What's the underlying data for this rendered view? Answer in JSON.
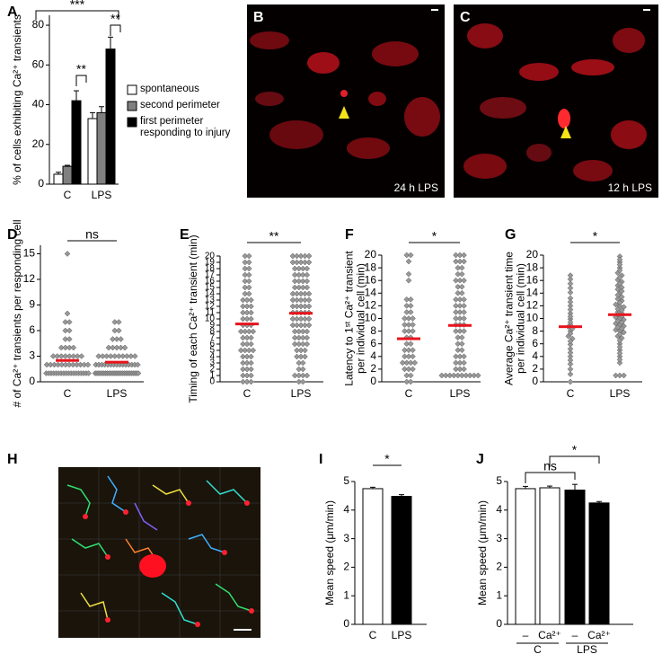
{
  "chart_data": [
    {
      "panel": "A",
      "type": "bar",
      "categories": [
        "C",
        "LPS"
      ],
      "series": [
        {
          "name": "spontaneous",
          "color": "#ffffff",
          "values": [
            5,
            33
          ],
          "errors": [
            1,
            3
          ]
        },
        {
          "name": "second perimeter",
          "color": "#808080",
          "values": [
            9,
            36
          ],
          "errors": [
            0.5,
            3
          ]
        },
        {
          "name": "first perimeter responding to injury",
          "color": "#000000",
          "values": [
            42,
            68
          ],
          "errors": [
            5,
            6
          ]
        }
      ],
      "ylabel": [
        "% of cells exhibiting Ca²⁺ transients"
      ],
      "ylim": [
        0,
        85
      ],
      "yticks": [
        0,
        20,
        40,
        60,
        80
      ],
      "annotations": [
        "**",
        "***",
        "**"
      ]
    },
    {
      "panel": "D",
      "type": "strip",
      "ylabel": [
        "# of Ca²⁺ transients  per  responding cell"
      ],
      "ylim": [
        0,
        16
      ],
      "yticks": [
        0,
        3,
        6,
        9,
        12,
        15
      ],
      "mean_color": "#e8141c",
      "annotations": [
        "ns"
      ],
      "groups": [
        {
          "label": "C",
          "mean": 2.5,
          "values": [
            15,
            8,
            7,
            7,
            6,
            6,
            5,
            5,
            4,
            4,
            4,
            4,
            3,
            3,
            3,
            3,
            3,
            3,
            3,
            3,
            2,
            2,
            2,
            2,
            2,
            2,
            2,
            2,
            2,
            2,
            2,
            2,
            1,
            1,
            1,
            1,
            1,
            1,
            1,
            1,
            1,
            1,
            1,
            1,
            1,
            1,
            1,
            1,
            1,
            1
          ]
        },
        {
          "label": "LPS",
          "mean": 2.3,
          "values": [
            7,
            7,
            6,
            6,
            5,
            5,
            5,
            4,
            4,
            4,
            4,
            4,
            3,
            3,
            3,
            3,
            3,
            3,
            3,
            3,
            3,
            3,
            2,
            2,
            2,
            2,
            2,
            2,
            2,
            2,
            2,
            2,
            2,
            2,
            2,
            2,
            2,
            1,
            1,
            1,
            1,
            1,
            1,
            1,
            1,
            1,
            1,
            1,
            1,
            1,
            1,
            1,
            1,
            1,
            1,
            1,
            1,
            1,
            1,
            1,
            1,
            1,
            1
          ]
        }
      ]
    },
    {
      "panel": "E",
      "type": "strip",
      "ylabel": [
        "Timing of each Ca²⁺ transient (min)"
      ],
      "ylim": [
        0,
        20
      ],
      "yticks": [
        0,
        1,
        2,
        3,
        4,
        5,
        6,
        7,
        8,
        9,
        10,
        11,
        12,
        13,
        14,
        15,
        16,
        17,
        18,
        19,
        20
      ],
      "mean_color": "#e8141c",
      "annotations": [
        "**"
      ],
      "groups": [
        {
          "label": "C",
          "mean": 9.2,
          "values": [
            20,
            20,
            19,
            19,
            18,
            18,
            17,
            17,
            16,
            16,
            15,
            15,
            14,
            14,
            13,
            13,
            13,
            12,
            12,
            12,
            11,
            11,
            11,
            10,
            10,
            10,
            9,
            9,
            9,
            8,
            8,
            8,
            8,
            7,
            7,
            7,
            6,
            6,
            6,
            5,
            5,
            5,
            5,
            4,
            4,
            4,
            3,
            3,
            3,
            2,
            2,
            2,
            1,
            1,
            1,
            0,
            0,
            0
          ]
        },
        {
          "label": "LPS",
          "mean": 10.9,
          "values": [
            20,
            20,
            20,
            20,
            20,
            19,
            19,
            19,
            19,
            19,
            18,
            18,
            18,
            18,
            17,
            17,
            17,
            17,
            16,
            16,
            16,
            16,
            15,
            15,
            15,
            15,
            14,
            14,
            14,
            14,
            14,
            13,
            13,
            13,
            13,
            13,
            12,
            12,
            12,
            12,
            12,
            11,
            11,
            11,
            11,
            11,
            10,
            10,
            10,
            10,
            10,
            9,
            9,
            9,
            9,
            9,
            8,
            8,
            8,
            8,
            7,
            7,
            7,
            7,
            6,
            6,
            6,
            6,
            5,
            5,
            5,
            4,
            4,
            4,
            3,
            3,
            2,
            2,
            1,
            1,
            1,
            1,
            0,
            0
          ]
        }
      ]
    },
    {
      "panel": "F",
      "type": "strip",
      "ylabel": [
        "Latency to 1ˢᵗ Ca²⁺ transient",
        "per individual cell (min)"
      ],
      "ylim": [
        0,
        20
      ],
      "yticks": [
        0,
        2,
        4,
        6,
        8,
        10,
        12,
        14,
        16,
        18,
        20
      ],
      "mean_color": "#e8141c",
      "annotations": [
        "*"
      ],
      "groups": [
        {
          "label": "C",
          "mean": 6.8,
          "values": [
            20,
            20,
            19,
            17,
            16,
            13,
            13,
            12,
            12,
            11,
            11,
            10,
            10,
            10,
            9,
            9,
            9,
            8,
            8,
            8,
            7,
            7,
            6,
            6,
            5,
            5,
            5,
            4,
            4,
            4,
            3,
            3,
            3,
            3,
            2,
            2,
            2,
            1,
            1,
            0,
            0
          ]
        },
        {
          "label": "LPS",
          "mean": 8.9,
          "values": [
            20,
            20,
            20,
            19,
            19,
            19,
            18,
            18,
            17,
            17,
            16,
            16,
            16,
            15,
            15,
            14,
            14,
            13,
            13,
            13,
            12,
            12,
            12,
            11,
            11,
            11,
            10,
            10,
            10,
            9,
            9,
            9,
            8,
            8,
            8,
            7,
            7,
            6,
            6,
            5,
            5,
            4,
            4,
            4,
            3,
            3,
            3,
            2,
            2,
            2,
            1,
            1,
            1,
            1,
            1,
            1,
            1,
            1,
            1,
            1
          ]
        }
      ]
    },
    {
      "panel": "G",
      "type": "strip",
      "ylabel": [
        "Average Ca²⁺ transient time",
        "per individual cell (min)"
      ],
      "ylim": [
        0,
        20
      ],
      "yticks": [
        0,
        2,
        4,
        6,
        8,
        10,
        12,
        14,
        16,
        18,
        20
      ],
      "mean_color": "#e8141c",
      "annotations": [
        "*"
      ],
      "groups": [
        {
          "label": "C",
          "mean": 8.7,
          "values": [
            16.8,
            16.2,
            15.5,
            14.8,
            14.1,
            13.2,
            12.6,
            12,
            11.4,
            10.8,
            10.3,
            9.9,
            9.4,
            9,
            8.7,
            8.4,
            8,
            7.6,
            7.2,
            6.8,
            6.4,
            5.9,
            5.2,
            4.6,
            4,
            3.4,
            2.8,
            2,
            1.2,
            0
          ]
        },
        {
          "label": "LPS",
          "mean": 10.6,
          "values": [
            19.8,
            19.3,
            18.9,
            18.5,
            18,
            17.6,
            17.2,
            16.8,
            16.5,
            16.1,
            15.8,
            15.5,
            15.2,
            14.9,
            14.6,
            14.3,
            14,
            13.7,
            13.4,
            13.1,
            12.8,
            12.5,
            12.2,
            12,
            11.8,
            11.5,
            11.3,
            11,
            10.8,
            10.6,
            10.4,
            10.2,
            10,
            9.8,
            9.6,
            9.4,
            9.2,
            9,
            8.8,
            8.6,
            8.4,
            8.2,
            8,
            7.8,
            7.5,
            7.2,
            6.9,
            6.5,
            6,
            5.5,
            5,
            4.5,
            4,
            3.5,
            3,
            1,
            1,
            1
          ]
        }
      ]
    },
    {
      "panel": "I",
      "type": "bar",
      "categories": [
        "C",
        "LPS"
      ],
      "values": [
        4.75,
        4.48
      ],
      "errors": [
        0.05,
        0.06
      ],
      "colors": [
        "#ffffff",
        "#000000"
      ],
      "ylabel": [
        "Mean speed (μm/min)"
      ],
      "ylim": [
        0,
        5
      ],
      "yticks": [
        0,
        1,
        2,
        3,
        4,
        5
      ],
      "annotations": [
        "*"
      ]
    },
    {
      "panel": "J",
      "type": "bar",
      "categories": [
        "–",
        "Ca²⁺",
        "–",
        "Ca²⁺"
      ],
      "groups": [
        "C",
        "LPS"
      ],
      "values": [
        4.75,
        4.78,
        4.7,
        4.25
      ],
      "errors": [
        0.08,
        0.06,
        0.2,
        0.05
      ],
      "colors": [
        "#ffffff",
        "#ffffff",
        "#000000",
        "#000000"
      ],
      "ylabel": [
        "Mean speed (μm/min)"
      ],
      "ylim": [
        0,
        5
      ],
      "yticks": [
        0,
        1,
        2,
        3,
        4,
        5
      ],
      "annotations": [
        "ns",
        "*"
      ]
    }
  ],
  "images": [
    {
      "panel": "B",
      "caption": "24 h LPS"
    },
    {
      "panel": "C",
      "caption": "12 h LPS"
    },
    {
      "panel": "H"
    }
  ]
}
